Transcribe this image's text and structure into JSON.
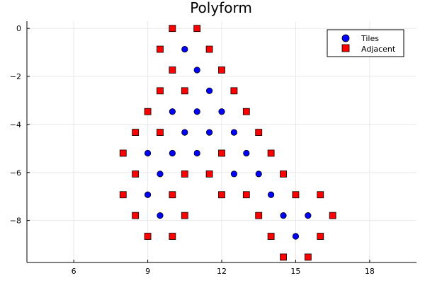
{
  "chart_data": {
    "type": "scatter",
    "title": "Polyform",
    "xlabel": "",
    "ylabel": "",
    "xlim": [
      4.1,
      19.9
    ],
    "ylim": [
      -9.75,
      0.3
    ],
    "xticks": [
      6,
      9,
      12,
      15,
      18
    ],
    "yticks": [
      0,
      -2,
      -4,
      -6,
      -8
    ],
    "xtick_labels": [
      "6",
      "9",
      "12",
      "15",
      "18"
    ],
    "ytick_labels": [
      "0",
      "−2",
      "−4",
      "−6",
      "−8"
    ],
    "grid": true,
    "legend_position": "top-right",
    "series": [
      {
        "name": "Tiles",
        "marker": "circle",
        "color": "#0000ff",
        "points": [
          [
            10.5,
            -0.866
          ],
          [
            11,
            -1.732
          ],
          [
            11.5,
            -2.598
          ],
          [
            10,
            -3.464
          ],
          [
            11,
            -3.464
          ],
          [
            12,
            -3.464
          ],
          [
            10.5,
            -4.33
          ],
          [
            11.5,
            -4.33
          ],
          [
            12.5,
            -4.33
          ],
          [
            9,
            -5.196
          ],
          [
            10,
            -5.196
          ],
          [
            11,
            -5.196
          ],
          [
            13,
            -5.196
          ],
          [
            9.5,
            -6.062
          ],
          [
            12.5,
            -6.062
          ],
          [
            13.5,
            -6.062
          ],
          [
            9,
            -6.928
          ],
          [
            14,
            -6.928
          ],
          [
            9.5,
            -7.794
          ],
          [
            14.5,
            -7.794
          ],
          [
            15.5,
            -7.794
          ],
          [
            15,
            -8.66
          ]
        ]
      },
      {
        "name": "Adjacent",
        "marker": "square",
        "color": "#ff0000",
        "points": [
          [
            10,
            0
          ],
          [
            11,
            0
          ],
          [
            9.5,
            -0.866
          ],
          [
            11.5,
            -0.866
          ],
          [
            10,
            -1.732
          ],
          [
            12,
            -1.732
          ],
          [
            9.5,
            -2.598
          ],
          [
            10.5,
            -2.598
          ],
          [
            12.5,
            -2.598
          ],
          [
            9,
            -3.464
          ],
          [
            13,
            -3.464
          ],
          [
            8.5,
            -4.33
          ],
          [
            9.5,
            -4.33
          ],
          [
            13.5,
            -4.33
          ],
          [
            8,
            -5.196
          ],
          [
            12,
            -5.196
          ],
          [
            14,
            -5.196
          ],
          [
            8.5,
            -6.062
          ],
          [
            10.5,
            -6.062
          ],
          [
            11.5,
            -6.062
          ],
          [
            14.5,
            -6.062
          ],
          [
            8,
            -6.928
          ],
          [
            10,
            -6.928
          ],
          [
            12,
            -6.928
          ],
          [
            13,
            -6.928
          ],
          [
            15,
            -6.928
          ],
          [
            16,
            -6.928
          ],
          [
            8.5,
            -7.794
          ],
          [
            10.5,
            -7.794
          ],
          [
            13.5,
            -7.794
          ],
          [
            16.5,
            -7.794
          ],
          [
            9,
            -8.66
          ],
          [
            10,
            -8.66
          ],
          [
            14,
            -8.66
          ],
          [
            16,
            -8.66
          ],
          [
            14.5,
            -9.526
          ],
          [
            15.5,
            -9.526
          ]
        ]
      }
    ]
  }
}
